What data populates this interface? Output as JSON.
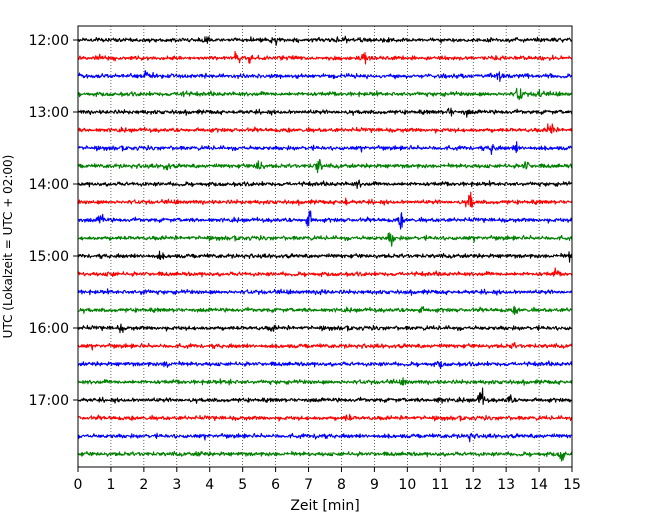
{
  "chart_data": {
    "type": "line",
    "title": "",
    "xlabel": "Zeit  [min]",
    "ylabel": "UTC (Lokalzeit = UTC + 02:00)",
    "xlim": [
      0,
      15
    ],
    "x_ticks": [
      "0",
      "1",
      "2",
      "3",
      "4",
      "5",
      "6",
      "7",
      "8",
      "9",
      "10",
      "11",
      "12",
      "13",
      "14",
      "15"
    ],
    "y_ticks": [
      "12:00",
      "13:00",
      "14:00",
      "15:00",
      "16:00",
      "17:00"
    ],
    "grid": "vertical-dotted",
    "trace_colors": [
      "#000000",
      "#ff0000",
      "#0000ff",
      "#008000"
    ],
    "traces": [
      {
        "start": "12:00",
        "color": "#000000",
        "events": [
          [
            3.9,
            0.5
          ],
          [
            8.1,
            0.45
          ],
          [
            6.0,
            0.3
          ]
        ]
      },
      {
        "start": "12:15",
        "color": "#ff0000",
        "events": [
          [
            4.85,
            0.75
          ],
          [
            5.2,
            0.4
          ],
          [
            8.7,
            0.5
          ]
        ]
      },
      {
        "start": "12:30",
        "color": "#0000ff",
        "events": [
          [
            2.1,
            0.35
          ],
          [
            12.8,
            0.4
          ],
          [
            13.6,
            0.3
          ]
        ]
      },
      {
        "start": "12:45",
        "color": "#008000",
        "events": [
          [
            3.2,
            0.45
          ],
          [
            13.4,
            0.8
          ],
          [
            14.0,
            0.5
          ]
        ]
      },
      {
        "start": "13:00",
        "color": "#000000",
        "events": [
          [
            11.3,
            0.45
          ],
          [
            11.8,
            0.3
          ]
        ]
      },
      {
        "start": "13:15",
        "color": "#ff0000",
        "events": [
          [
            14.35,
            0.95
          ]
        ]
      },
      {
        "start": "13:30",
        "color": "#0000ff",
        "events": [
          [
            12.6,
            0.55
          ],
          [
            13.3,
            0.4
          ]
        ]
      },
      {
        "start": "13:45",
        "color": "#008000",
        "events": [
          [
            2.7,
            0.4
          ],
          [
            5.5,
            0.8
          ],
          [
            7.3,
            0.8
          ],
          [
            13.6,
            0.5
          ]
        ]
      },
      {
        "start": "14:00",
        "color": "#000000",
        "events": [
          [
            8.5,
            0.3
          ]
        ]
      },
      {
        "start": "14:15",
        "color": "#ff0000",
        "events": [
          [
            8.1,
            0.4
          ],
          [
            11.9,
            1.0
          ]
        ]
      },
      {
        "start": "14:30",
        "color": "#0000ff",
        "events": [
          [
            0.7,
            0.6
          ],
          [
            7.0,
            1.1
          ],
          [
            9.8,
            0.6
          ]
        ]
      },
      {
        "start": "14:45",
        "color": "#008000",
        "events": [
          [
            9.5,
            0.7
          ]
        ]
      },
      {
        "start": "15:00",
        "color": "#000000",
        "events": [
          [
            14.95,
            0.5
          ],
          [
            2.5,
            0.3
          ]
        ]
      },
      {
        "start": "15:15",
        "color": "#ff0000",
        "events": [
          [
            1.0,
            0.3
          ],
          [
            14.5,
            0.3
          ]
        ]
      },
      {
        "start": "15:30",
        "color": "#0000ff",
        "events": [
          [
            2.0,
            0.3
          ],
          [
            7.4,
            0.3
          ]
        ]
      },
      {
        "start": "15:45",
        "color": "#008000",
        "events": [
          [
            10.4,
            0.3
          ],
          [
            13.3,
            0.3
          ]
        ]
      },
      {
        "start": "16:00",
        "color": "#000000",
        "events": [
          [
            1.3,
            0.3
          ],
          [
            5.9,
            0.25
          ]
        ]
      },
      {
        "start": "16:15",
        "color": "#ff0000",
        "events": [
          [
            13.2,
            0.2
          ]
        ]
      },
      {
        "start": "16:30",
        "color": "#0000ff",
        "events": [
          [
            2.7,
            0.35
          ],
          [
            11.0,
            0.25
          ]
        ]
      },
      {
        "start": "16:45",
        "color": "#008000",
        "events": [
          [
            4.6,
            0.2
          ],
          [
            9.9,
            0.2
          ]
        ]
      },
      {
        "start": "17:00",
        "color": "#000000",
        "events": [
          [
            12.25,
            1.2
          ],
          [
            13.1,
            0.45
          ],
          [
            11.0,
            0.3
          ]
        ]
      },
      {
        "start": "17:15",
        "color": "#ff0000",
        "events": [
          [
            8.2,
            0.35
          ]
        ]
      },
      {
        "start": "17:30",
        "color": "#0000ff",
        "events": [
          [
            7.3,
            0.4
          ],
          [
            11.9,
            0.3
          ]
        ]
      },
      {
        "start": "17:45",
        "color": "#008000",
        "events": [
          [
            14.7,
            0.6
          ],
          [
            3.7,
            0.2
          ]
        ]
      }
    ]
  }
}
